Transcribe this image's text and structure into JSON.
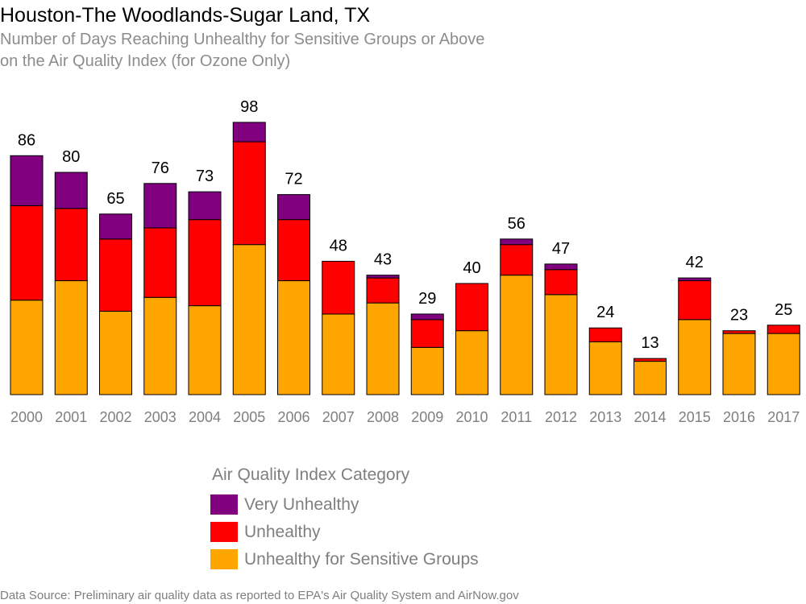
{
  "chart_data": {
    "type": "bar",
    "stacked": true,
    "title": "Houston-The Woodlands-Sugar Land, TX",
    "subtitle_lines": [
      "Number of Days Reaching Unhealthy for Sensitive Groups or Above",
      "on the Air Quality Index (for Ozone Only)"
    ],
    "categories": [
      "2000",
      "2001",
      "2002",
      "2003",
      "2004",
      "2005",
      "2006",
      "2007",
      "2008",
      "2009",
      "2010",
      "2011",
      "2012",
      "2013",
      "2014",
      "2015",
      "2016",
      "2017"
    ],
    "totals": [
      86,
      80,
      65,
      76,
      73,
      98,
      72,
      48,
      43,
      29,
      40,
      56,
      47,
      24,
      13,
      42,
      23,
      25
    ],
    "series": [
      {
        "name": "Unhealthy for Sensitive Groups",
        "color": "#ffa500",
        "values": [
          34,
          41,
          30,
          35,
          32,
          54,
          41,
          29,
          33,
          17,
          23,
          43,
          36,
          19,
          12,
          27,
          22,
          22
        ]
      },
      {
        "name": "Unhealthy",
        "color": "#ff0000",
        "values": [
          34,
          26,
          26,
          25,
          31,
          37,
          22,
          19,
          9,
          10,
          17,
          11,
          9,
          5,
          1,
          14,
          1,
          3
        ]
      },
      {
        "name": "Very Unhealthy",
        "color": "#800080",
        "values": [
          18,
          13,
          9,
          16,
          10,
          7,
          9,
          0,
          1,
          2,
          0,
          2,
          2,
          0,
          0,
          1,
          0,
          0
        ]
      }
    ],
    "ylim": [
      0,
      100
    ],
    "grid": false,
    "legend": {
      "title": "Air Quality Index Category",
      "placement": "bottom-center",
      "order": [
        "Very Unhealthy",
        "Unhealthy",
        "Unhealthy for Sensitive Groups"
      ]
    }
  },
  "footer": {
    "source": "Data Source: Preliminary air quality data as reported to EPA's Air Quality System and AirNow.gov"
  }
}
